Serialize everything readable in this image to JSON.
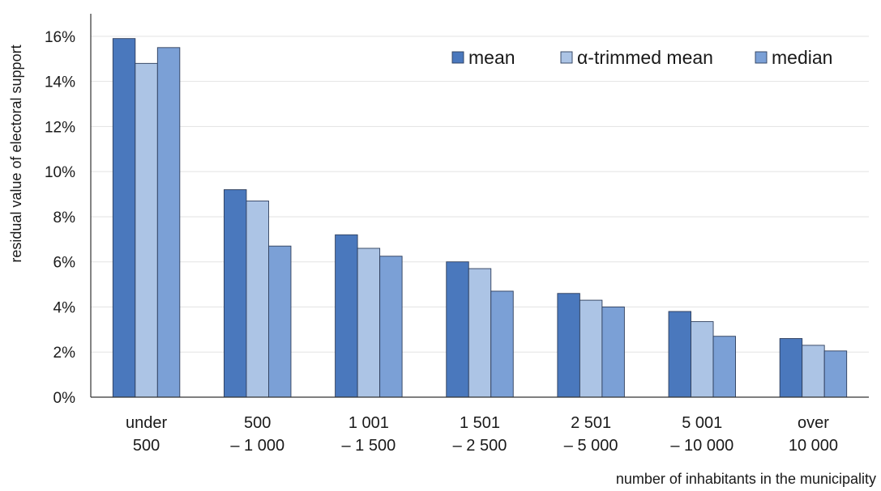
{
  "chart_data": {
    "type": "bar",
    "categories": [
      [
        "under",
        "500"
      ],
      [
        "500",
        "– 1 000"
      ],
      [
        "1 001",
        "– 1 500"
      ],
      [
        "1 501",
        "– 2 500"
      ],
      [
        "2 501",
        "– 5 000"
      ],
      [
        "5 001",
        "– 10 000"
      ],
      [
        "over",
        "10 000"
      ]
    ],
    "series": [
      {
        "name": "mean",
        "color": "#4a78bd",
        "values": [
          15.9,
          9.2,
          7.2,
          6.0,
          4.6,
          3.8,
          2.6
        ]
      },
      {
        "name": "α-trimmed mean",
        "color": "#acc4e5",
        "values": [
          14.8,
          8.7,
          6.6,
          5.7,
          4.3,
          3.35,
          2.3
        ]
      },
      {
        "name": "median",
        "color": "#7ba0d6",
        "values": [
          15.5,
          6.7,
          6.25,
          4.7,
          4.0,
          2.7,
          2.05
        ]
      }
    ],
    "ylabel": "residual value of electoral support",
    "xlabel": "number of inhabitants in the municipality",
    "ylim": [
      0,
      17
    ],
    "yticks": [
      0,
      2,
      4,
      6,
      8,
      10,
      12,
      14,
      16
    ],
    "ytick_format": "percent",
    "grid": true,
    "legend_position": "top-right"
  }
}
